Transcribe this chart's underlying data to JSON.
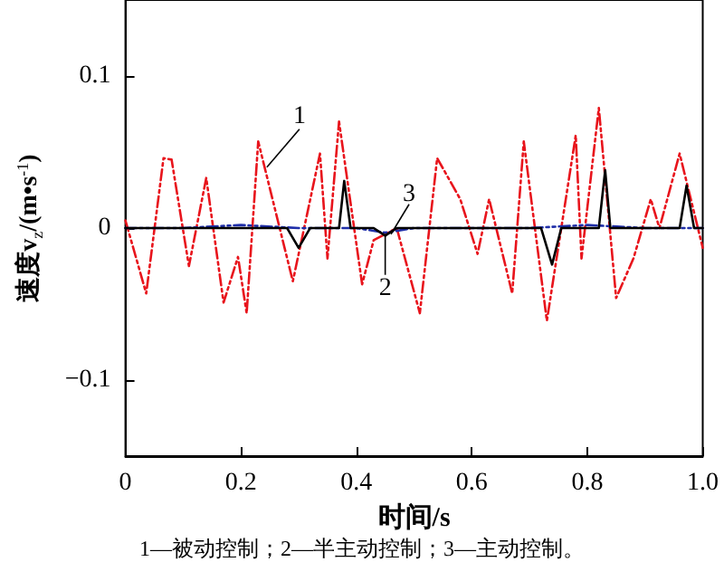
{
  "chart_data": {
    "type": "line",
    "xlabel": "时间/s",
    "ylabel": "速度v$_{z}$/(m•s$^{-1}$)",
    "xlim": [
      0,
      1
    ],
    "xticks": [
      0,
      0.2,
      0.4,
      0.6,
      0.8,
      {
        "value": 1,
        "label": "1.0"
      }
    ],
    "ylim": [
      -0.15,
      0.15
    ],
    "yticks": [
      -0.1,
      0,
      0.1
    ],
    "grid": false,
    "marker": "none",
    "series": [
      {
        "color": "#e8141c",
        "line_style": "dashed",
        "x": [
          0,
          0.036,
          0.066,
          0.08,
          0.11,
          0.14,
          0.17,
          0.195,
          0.21,
          0.23,
          0.29,
          0.337,
          0.35,
          0.37,
          0.41,
          0.43,
          0.47,
          0.51,
          0.54,
          0.58,
          0.61,
          0.63,
          0.67,
          0.69,
          0.73,
          0.78,
          0.79,
          0.82,
          0.85,
          0.88,
          0.91,
          0.925,
          0.96,
          1
        ],
        "values": [
          0.005,
          -0.043,
          0.046,
          0.045,
          -0.025,
          0.033,
          -0.049,
          -0.019,
          -0.056,
          0.057,
          -0.035,
          0.049,
          -0.02,
          0.07,
          -0.037,
          -0.008,
          0,
          -0.056,
          0.046,
          0.019,
          -0.017,
          0.019,
          -0.043,
          0.057,
          -0.061,
          0.061,
          -0.02,
          0.079,
          -0.046,
          -0.02,
          0.019,
          0,
          0.049,
          -0.013
        ]
      },
      {
        "color": "#1f2ea8",
        "line_style": "dashed",
        "x": [
          0,
          0.1,
          0.2,
          0.3,
          0.4,
          0.45,
          0.5,
          0.6,
          0.7,
          0.8,
          0.9,
          1
        ],
        "values": [
          0,
          0,
          0.002,
          0,
          0,
          -0.003,
          0,
          0,
          0,
          0.002,
          0,
          0
        ]
      },
      {
        "color": "#000000",
        "line_style": "solid",
        "x": [
          0,
          0.28,
          0.3,
          0.32,
          0.37,
          0.379,
          0.39,
          0.43,
          0.45,
          0.47,
          0.72,
          0.739,
          0.755,
          0.82,
          0.831,
          0.84,
          0.96,
          0.972,
          0.985,
          1
        ],
        "values": [
          0,
          0,
          -0.013,
          0,
          0,
          0.031,
          0,
          0,
          -0.005,
          0,
          0,
          -0.024,
          0,
          0,
          0.038,
          0,
          0,
          0.028,
          0,
          0
        ]
      }
    ],
    "annotations": [
      {
        "text": "1",
        "x": 0.245,
        "y": 0.04
      },
      {
        "text": "3",
        "x": 0.46,
        "y": -0.004
      },
      {
        "text": "2",
        "x": 0.45,
        "y": -0.004
      },
      "1—被动控制；2—半主动控制；3—主动控制。"
    ]
  }
}
